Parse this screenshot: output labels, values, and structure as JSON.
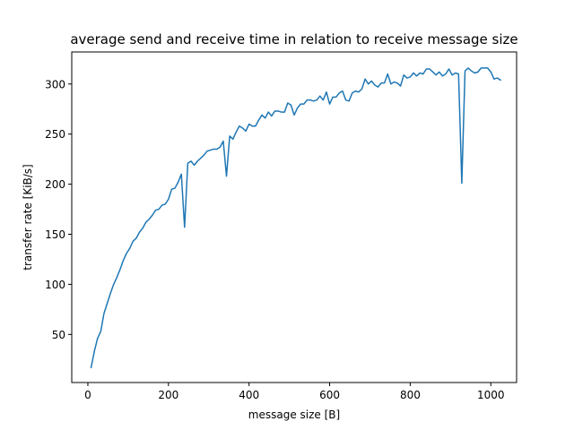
{
  "chart_data": {
    "type": "line",
    "title": "average send and receive time in relation to receive message size",
    "xlabel": "message size [B]",
    "ylabel": "transfer rate [KiB/s]",
    "xlim": [
      -40,
      1064
    ],
    "ylim": [
      2,
      332
    ],
    "xticks": [
      0,
      200,
      400,
      600,
      800,
      1000
    ],
    "yticks": [
      50,
      100,
      150,
      200,
      250,
      300
    ],
    "grid": false,
    "line_color": "#1f77b4",
    "series": [
      {
        "x": [
          8,
          16,
          24,
          32,
          40,
          48,
          56,
          64,
          72,
          80,
          88,
          96,
          104,
          112,
          120,
          128,
          136,
          144,
          152,
          160,
          168,
          176,
          184,
          192,
          200,
          208,
          216,
          224,
          232,
          240,
          248,
          256,
          264,
          272,
          280,
          288,
          296,
          304,
          312,
          320,
          328,
          336,
          344,
          352,
          360,
          368,
          376,
          384,
          392,
          400,
          408,
          416,
          424,
          432,
          440,
          448,
          456,
          464,
          472,
          480,
          488,
          496,
          504,
          512,
          520,
          528,
          536,
          544,
          552,
          560,
          568,
          576,
          584,
          592,
          600,
          608,
          616,
          624,
          632,
          640,
          648,
          656,
          664,
          672,
          680,
          688,
          696,
          704,
          712,
          720,
          728,
          736,
          744,
          752,
          760,
          768,
          776,
          784,
          792,
          800,
          808,
          816,
          824,
          832,
          840,
          848,
          856,
          864,
          872,
          880,
          888,
          896,
          904,
          912,
          920,
          928,
          936,
          944,
          952,
          960,
          968,
          976,
          984,
          992,
          1000,
          1008,
          1016,
          1024
        ],
        "values": [
          17,
          33,
          46,
          53,
          71,
          81,
          91,
          100,
          107,
          115,
          124,
          131,
          136,
          143,
          146,
          152,
          156,
          162,
          165,
          169,
          174,
          175,
          179,
          180,
          185,
          195,
          196,
          202,
          210,
          157,
          221,
          223,
          219,
          223,
          226,
          229,
          233,
          234,
          235,
          235,
          237,
          243,
          208,
          248,
          245,
          252,
          258,
          256,
          253,
          260,
          258,
          258,
          264,
          269,
          266,
          272,
          268,
          273,
          273,
          272,
          272,
          281,
          279,
          269,
          276,
          280,
          280,
          284,
          284,
          283,
          284,
          288,
          284,
          292,
          280,
          287,
          287,
          291,
          293,
          284,
          283,
          291,
          293,
          292,
          295,
          305,
          300,
          303,
          299,
          297,
          301,
          301,
          310,
          300,
          302,
          301,
          298,
          309,
          306,
          307,
          311,
          308,
          311,
          310,
          315,
          315,
          312,
          309,
          312,
          308,
          310,
          315,
          309,
          311,
          310,
          201,
          313,
          316,
          313,
          311,
          312,
          316,
          316,
          316,
          312,
          305,
          306,
          304
        ]
      }
    ]
  }
}
